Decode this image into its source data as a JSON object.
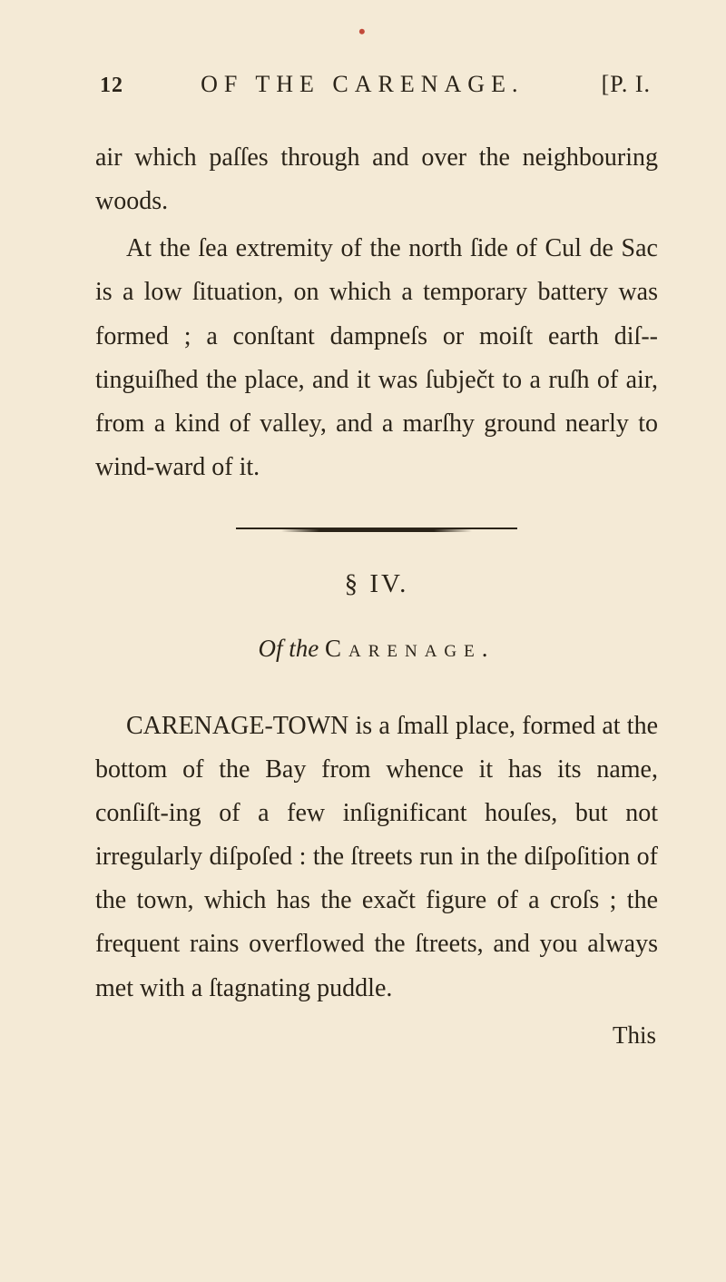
{
  "page": {
    "top_mark": "•",
    "header": {
      "page_number": "12",
      "running_head": "OF THE CARENAGE.",
      "part_ref": "[P. I."
    },
    "paragraphs": {
      "p1": "air which paſſes through and over the neighbouring woods.",
      "p2": "At the ſea extremity of the north ſide of Cul de Sac is a low ſituation, on which a temporary battery was formed ; a conſtant dampneſs or moiſt earth diſ-­tinguiſhed the place, and it was ſubječt to a ruſh of air, from a kind of valley, and a marſhy ground nearly to wind-­ward of it."
    },
    "section": {
      "number": "§ IV.",
      "title_of": "Of",
      "title_the": "the",
      "title_caps": "Carenage."
    },
    "body": {
      "p3": "CARENAGE-TOWN is a ſmall place, formed at the bottom of the Bay from whence it has its name, conſiſt-­ing of a few inſignificant houſes, but not irregularly diſpoſed : the ſtreets run in the diſpoſition of the town, which has the exačt figure of a croſs ; the frequent rains overflowed the ſtreets, and you always met with a ſtagnating puddle."
    },
    "catchword": "This"
  }
}
